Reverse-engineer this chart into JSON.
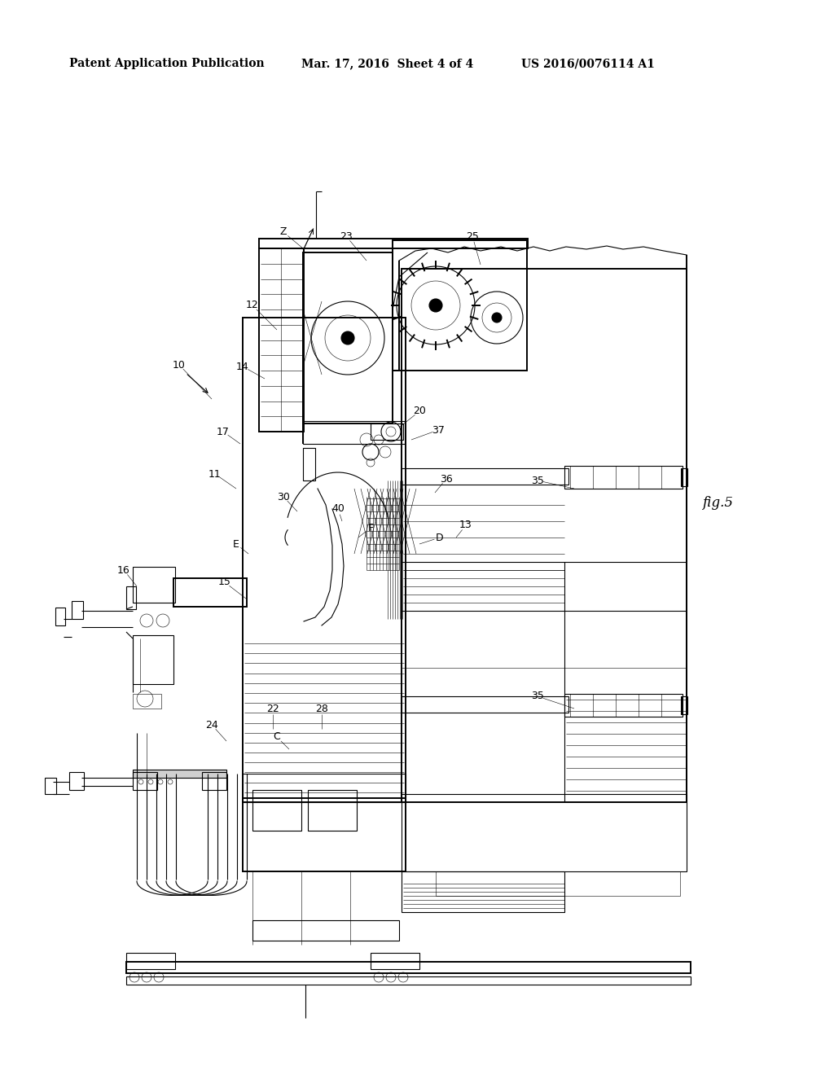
{
  "bg_color": "#ffffff",
  "line_color": "#000000",
  "header_left": "Patent Application Publication",
  "header_center": "Mar. 17, 2016  Sheet 4 of 4",
  "header_right": "US 2016/0076114 A1",
  "fig_label": "fig.5",
  "lw_heavy": 1.4,
  "lw_med": 0.8,
  "lw_thin": 0.4
}
